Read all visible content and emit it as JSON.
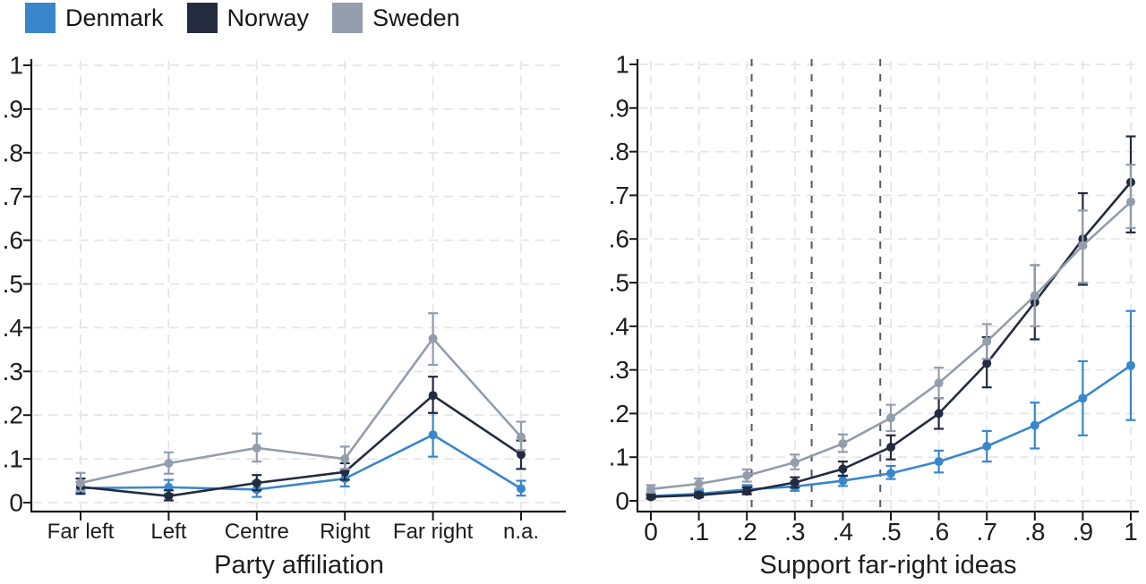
{
  "figure": {
    "legend": {
      "items": [
        {
          "label": "Denmark",
          "color": "#3a86cd"
        },
        {
          "label": "Norway",
          "color": "#242b3e"
        },
        {
          "label": "Sweden",
          "color": "#939dab"
        }
      ]
    }
  },
  "chart_data": [
    {
      "type": "line",
      "panel": "left",
      "title": "",
      "xlabel": "Party affiliation",
      "ylabel": "",
      "ylim": [
        0,
        1
      ],
      "grid": true,
      "yticks": [
        0,
        0.1,
        0.2,
        0.3,
        0.4,
        0.5,
        0.6,
        0.7,
        0.8,
        0.9,
        1
      ],
      "ytick_labels": [
        "0",
        ".1",
        ".2",
        ".3",
        ".4",
        ".5",
        ".6",
        ".7",
        ".8",
        ".9",
        "1"
      ],
      "categories": [
        "Far left",
        "Left",
        "Centre",
        "Right",
        "Far right",
        "n.a."
      ],
      "series": [
        {
          "name": "Denmark",
          "color": "#3a86cd",
          "values": [
            0.033,
            0.035,
            0.03,
            0.055,
            0.155,
            0.032
          ],
          "ci_low": [
            0.022,
            0.02,
            0.013,
            0.037,
            0.105,
            0.016
          ],
          "ci_high": [
            0.047,
            0.052,
            0.048,
            0.073,
            0.205,
            0.05
          ]
        },
        {
          "name": "Norway",
          "color": "#242b3e",
          "values": [
            0.036,
            0.015,
            0.045,
            0.07,
            0.245,
            0.11
          ],
          "ci_low": [
            0.02,
            0.005,
            0.028,
            0.052,
            0.205,
            0.077
          ],
          "ci_high": [
            0.055,
            0.028,
            0.063,
            0.09,
            0.288,
            0.142
          ]
        },
        {
          "name": "Sweden",
          "color": "#939dab",
          "values": [
            0.045,
            0.09,
            0.125,
            0.1,
            0.375,
            0.15
          ],
          "ci_low": [
            0.027,
            0.066,
            0.094,
            0.077,
            0.315,
            0.12
          ],
          "ci_high": [
            0.068,
            0.115,
            0.158,
            0.128,
            0.433,
            0.185
          ]
        }
      ]
    },
    {
      "type": "line",
      "panel": "right",
      "title": "",
      "xlabel": "Support far-right ideas",
      "ylabel": "",
      "ylim": [
        0,
        1
      ],
      "xlim": [
        0,
        1
      ],
      "grid": true,
      "yticks": [
        0,
        0.1,
        0.2,
        0.3,
        0.4,
        0.5,
        0.6,
        0.7,
        0.8,
        0.9,
        1
      ],
      "ytick_labels": [
        "0",
        ".1",
        ".2",
        ".3",
        ".4",
        ".5",
        ".6",
        ".7",
        ".8",
        ".9",
        "1"
      ],
      "x": [
        0,
        0.1,
        0.2,
        0.3,
        0.4,
        0.5,
        0.6,
        0.7,
        0.8,
        0.9,
        1
      ],
      "xtick_labels": [
        "0",
        ".1",
        ".2",
        ".3",
        ".4",
        ".5",
        ".6",
        ".7",
        ".8",
        ".9",
        "1"
      ],
      "reference_lines_x": [
        0.21,
        0.335,
        0.478
      ],
      "series": [
        {
          "name": "Denmark",
          "color": "#3a86cd",
          "values": [
            0.011,
            0.016,
            0.026,
            0.033,
            0.046,
            0.063,
            0.09,
            0.125,
            0.173,
            0.235,
            0.31
          ],
          "ci_low": [
            0.006,
            0.01,
            0.017,
            0.023,
            0.034,
            0.05,
            0.065,
            0.09,
            0.12,
            0.15,
            0.185
          ],
          "ci_high": [
            0.017,
            0.024,
            0.036,
            0.044,
            0.058,
            0.08,
            0.115,
            0.16,
            0.225,
            0.32,
            0.435
          ]
        },
        {
          "name": "Norway",
          "color": "#242b3e",
          "values": [
            0.009,
            0.013,
            0.022,
            0.042,
            0.073,
            0.123,
            0.2,
            0.315,
            0.455,
            0.6,
            0.73
          ],
          "ci_low": [
            0.005,
            0.008,
            0.015,
            0.03,
            0.057,
            0.095,
            0.165,
            0.26,
            0.37,
            0.495,
            0.615
          ],
          "ci_high": [
            0.014,
            0.019,
            0.031,
            0.054,
            0.09,
            0.15,
            0.235,
            0.375,
            0.54,
            0.705,
            0.835
          ]
        },
        {
          "name": "Sweden",
          "color": "#939dab",
          "values": [
            0.027,
            0.039,
            0.058,
            0.088,
            0.131,
            0.19,
            0.27,
            0.365,
            0.47,
            0.585,
            0.685
          ],
          "ci_low": [
            0.019,
            0.028,
            0.044,
            0.072,
            0.112,
            0.16,
            0.235,
            0.325,
            0.4,
            0.5,
            0.625
          ],
          "ci_high": [
            0.036,
            0.051,
            0.072,
            0.106,
            0.152,
            0.22,
            0.305,
            0.405,
            0.54,
            0.665,
            0.77
          ]
        }
      ]
    }
  ]
}
